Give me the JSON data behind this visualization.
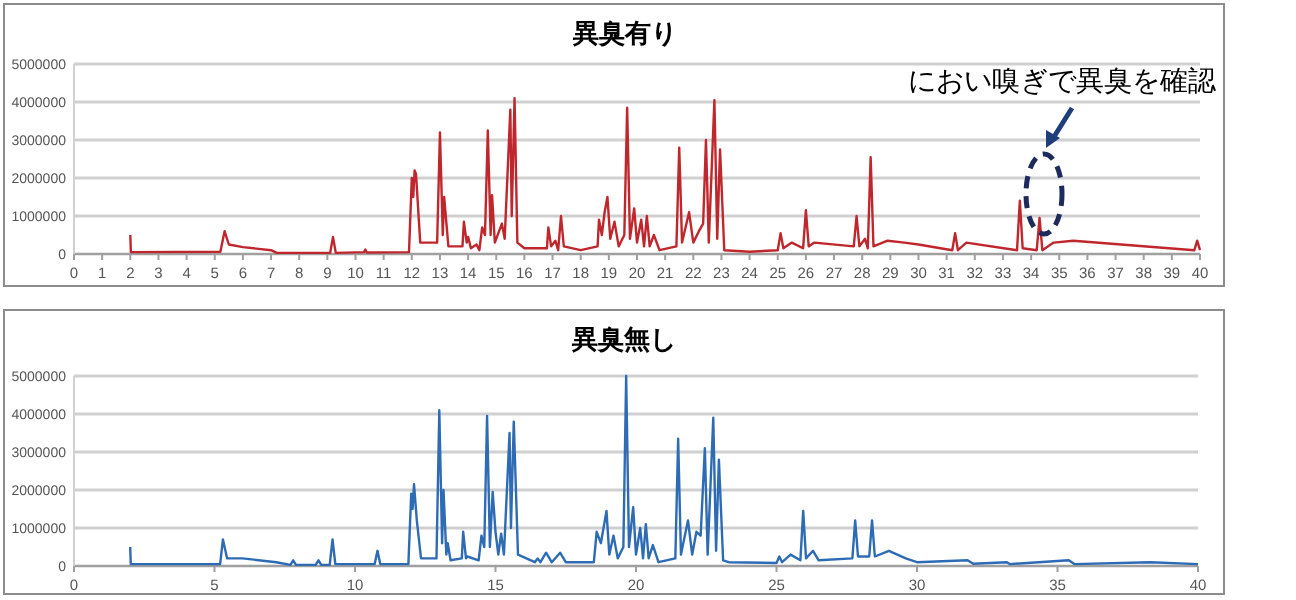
{
  "chart_data": [
    {
      "type": "line",
      "title": "異臭有り",
      "xlim": [
        0,
        40
      ],
      "xticks": [
        0,
        1,
        2,
        3,
        4,
        5,
        6,
        7,
        8,
        9,
        10,
        11,
        12,
        13,
        14,
        15,
        16,
        17,
        18,
        19,
        20,
        21,
        22,
        23,
        24,
        25,
        26,
        27,
        28,
        29,
        30,
        31,
        32,
        33,
        34,
        35,
        36,
        37,
        38,
        39,
        40
      ],
      "ylim": [
        0,
        5000000
      ],
      "yticks": [
        0,
        1000000,
        2000000,
        3000000,
        4000000,
        5000000
      ],
      "grid": "y",
      "marker": "none",
      "annotations": [
        "におい嗅ぎで異臭を確認"
      ],
      "x": [
        2,
        2.02,
        5.2,
        5.35,
        5.5,
        6,
        7,
        7.2,
        9.1,
        9.2,
        9.3,
        10.3,
        10.35,
        10.4,
        11.9,
        12,
        12.05,
        12.1,
        12.15,
        12.3,
        12.9,
        13,
        13.1,
        13.15,
        13.3,
        13.8,
        13.85,
        13.95,
        14,
        14.1,
        14.3,
        14.4,
        14.5,
        14.6,
        14.7,
        14.8,
        14.85,
        14.95,
        15.2,
        15.3,
        15.5,
        15.55,
        15.65,
        15.75,
        16,
        16.8,
        16.85,
        16.95,
        17.1,
        17.2,
        17.3,
        17.4,
        18,
        18.6,
        18.65,
        18.75,
        18.85,
        18.95,
        19.05,
        19.2,
        19.35,
        19.55,
        19.65,
        19.75,
        19.9,
        20,
        20.15,
        20.25,
        20.35,
        20.45,
        20.6,
        20.8,
        21.4,
        21.5,
        21.6,
        21.85,
        22,
        22.2,
        22.35,
        22.45,
        22.55,
        22.75,
        22.85,
        22.95,
        23.1,
        24,
        25,
        25.1,
        25.2,
        25.5,
        25.9,
        26,
        26.1,
        26.3,
        27.7,
        27.8,
        27.9,
        28.1,
        28.2,
        28.3,
        28.4,
        28.9,
        29.5,
        30,
        31.2,
        31.3,
        31.4,
        31.7,
        33.5,
        33.6,
        33.7,
        34.2,
        34.3,
        34.4,
        34.8,
        35.5,
        39.8,
        39.9,
        40
      ],
      "series": [
        {
          "color": "#c0272d",
          "values": [
            500000,
            50000,
            60000,
            600000,
            250000,
            180000,
            100000,
            30000,
            30000,
            450000,
            30000,
            50000,
            120000,
            40000,
            50000,
            2000000,
            1500000,
            2200000,
            2100000,
            300000,
            300000,
            3200000,
            500000,
            1500000,
            200000,
            200000,
            850000,
            300000,
            450000,
            150000,
            250000,
            100000,
            700000,
            500000,
            3250000,
            500000,
            1550000,
            300000,
            800000,
            400000,
            3800000,
            1000000,
            4100000,
            300000,
            150000,
            150000,
            700000,
            200000,
            350000,
            100000,
            1000000,
            200000,
            100000,
            200000,
            900000,
            500000,
            1100000,
            1500000,
            400000,
            850000,
            200000,
            500000,
            3850000,
            400000,
            1200000,
            300000,
            900000,
            200000,
            1000000,
            200000,
            500000,
            100000,
            200000,
            2800000,
            300000,
            1100000,
            300000,
            600000,
            800000,
            3000000,
            300000,
            4050000,
            400000,
            2750000,
            100000,
            60000,
            100000,
            550000,
            150000,
            300000,
            150000,
            1150000,
            200000,
            300000,
            200000,
            1000000,
            200000,
            400000,
            150000,
            2550000,
            200000,
            350000,
            300000,
            250000,
            100000,
            550000,
            100000,
            300000,
            100000,
            1400000,
            150000,
            100000,
            950000,
            100000,
            300000,
            350000,
            100000,
            350000,
            100000
          ]
        }
      ]
    },
    {
      "type": "line",
      "title": "異臭無し",
      "xlim": [
        0,
        40
      ],
      "xticks": [
        0,
        5,
        10,
        15,
        20,
        25,
        30,
        35,
        40
      ],
      "ylim": [
        0,
        5000000
      ],
      "yticks": [
        0,
        1000000,
        2000000,
        3000000,
        4000000,
        5000000
      ],
      "grid": "y",
      "marker": "none",
      "x": [
        2,
        2.02,
        5.2,
        5.3,
        5.45,
        6,
        7.2,
        7.7,
        7.8,
        7.9,
        8.6,
        8.7,
        8.8,
        9.1,
        9.2,
        9.3,
        10.7,
        10.8,
        10.9,
        11.9,
        12,
        12.05,
        12.1,
        12.2,
        12.35,
        12.9,
        13,
        13.1,
        13.15,
        13.25,
        13.3,
        13.4,
        13.8,
        13.85,
        13.95,
        14,
        14.4,
        14.5,
        14.6,
        14.7,
        14.8,
        14.9,
        15,
        15.1,
        15.2,
        15.3,
        15.5,
        15.55,
        15.65,
        15.8,
        16.4,
        16.5,
        16.6,
        16.8,
        17,
        17.3,
        17.5,
        18.5,
        18.6,
        18.75,
        18.95,
        19.05,
        19.2,
        19.35,
        19.55,
        19.65,
        19.75,
        19.9,
        20,
        20.15,
        20.25,
        20.35,
        20.45,
        20.6,
        20.8,
        21.4,
        21.5,
        21.6,
        21.85,
        22,
        22.15,
        22.3,
        22.45,
        22.55,
        22.75,
        22.85,
        22.95,
        23.1,
        23.3,
        25,
        25.1,
        25.2,
        25.5,
        25.85,
        25.95,
        26.05,
        26.3,
        26.5,
        27.7,
        27.8,
        27.9,
        28.3,
        28.4,
        28.5,
        29,
        29.6,
        30,
        31.8,
        32,
        33.2,
        33.3,
        35.4,
        35.6,
        38.3,
        40
      ],
      "series": [
        {
          "color": "#2e6bb5",
          "values": [
            500000,
            50000,
            50000,
            700000,
            200000,
            200000,
            100000,
            30000,
            150000,
            30000,
            30000,
            150000,
            30000,
            30000,
            700000,
            50000,
            50000,
            400000,
            50000,
            50000,
            1900000,
            1500000,
            2150000,
            1200000,
            200000,
            200000,
            4100000,
            600000,
            2000000,
            300000,
            600000,
            150000,
            200000,
            900000,
            200000,
            250000,
            150000,
            800000,
            500000,
            3950000,
            500000,
            1950000,
            900000,
            300000,
            850000,
            300000,
            3500000,
            1000000,
            3800000,
            300000,
            100000,
            200000,
            100000,
            350000,
            100000,
            350000,
            100000,
            100000,
            900000,
            600000,
            1450000,
            300000,
            800000,
            200000,
            500000,
            5000000,
            500000,
            1550000,
            300000,
            1000000,
            200000,
            1100000,
            200000,
            550000,
            100000,
            200000,
            3350000,
            300000,
            1200000,
            300000,
            900000,
            800000,
            3100000,
            300000,
            3900000,
            400000,
            2800000,
            150000,
            100000,
            80000,
            250000,
            100000,
            300000,
            150000,
            1450000,
            200000,
            400000,
            150000,
            200000,
            1200000,
            250000,
            250000,
            1200000,
            250000,
            400000,
            200000,
            100000,
            150000,
            60000,
            100000,
            50000,
            150000,
            50000,
            100000,
            50000
          ]
        }
      ]
    }
  ]
}
